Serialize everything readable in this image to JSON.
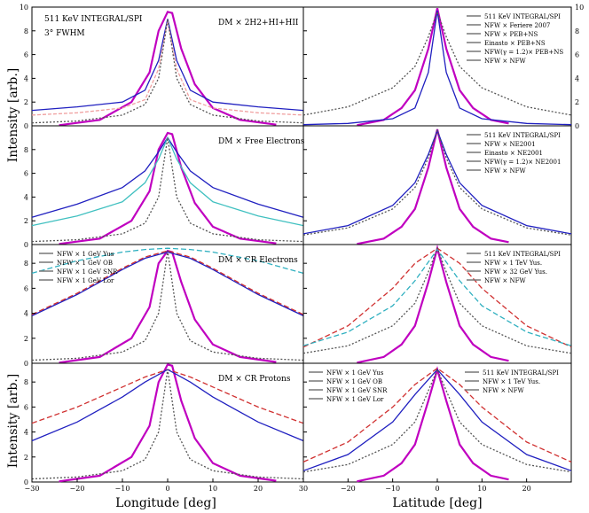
{
  "figure": {
    "xlabel_left": "Longitude [deg]",
    "xlabel_right": "Latitude [deg]",
    "ylabel": "Intensity [arb.]",
    "x_ticks_left": [
      "−30",
      "−20",
      "−10",
      "0",
      "10",
      "20",
      "30"
    ],
    "x_ticks_right": [
      "−20",
      "−10",
      "0",
      "10",
      "20"
    ],
    "y_ticks": [
      "0",
      "2",
      "4",
      "6",
      "8",
      "10"
    ],
    "y_ticks_small": [
      "0",
      "2",
      "4",
      "6",
      "8"
    ]
  },
  "chart_data": [
    {
      "type": "line",
      "panel": "row1-left",
      "title": "511 KeV INTEGRAL/SPI",
      "subtitle": "3° FWHM",
      "annotation": "DM × 2H2+HI+HII",
      "xlim": [
        -30,
        30
      ],
      "ylim": [
        0,
        10
      ],
      "series": [
        {
          "name": "511 KeV INTEGRAL/SPI",
          "color": "#c000c0",
          "x": [
            -24,
            -15,
            -8,
            -4,
            -2,
            0,
            1,
            3,
            6,
            10,
            16,
            24
          ],
          "y": [
            0.05,
            0.5,
            2.0,
            4.5,
            8.0,
            9.6,
            9.5,
            6.5,
            3.5,
            1.5,
            0.5,
            0.1
          ]
        },
        {
          "name": "NFW × PEB+NS",
          "color": "#2020c0",
          "x": [
            -30,
            -20,
            -10,
            -5,
            -2,
            0,
            2,
            5,
            10,
            20,
            30
          ],
          "y": [
            1.3,
            1.6,
            2.0,
            3.0,
            5.5,
            9.0,
            5.5,
            3.0,
            2.0,
            1.6,
            1.3
          ]
        },
        {
          "name": "NFW × Feriere 2007",
          "color": "#f0a0a0",
          "x": [
            -30,
            -20,
            -10,
            -5,
            -2,
            0,
            2,
            5,
            10,
            20,
            30
          ],
          "y": [
            0.9,
            1.1,
            1.5,
            2.2,
            4.8,
            8.8,
            4.8,
            2.2,
            1.5,
            1.1,
            0.9
          ]
        },
        {
          "name": "NFW × NFW",
          "color": "#555555",
          "x": [
            -30,
            -20,
            -10,
            -5,
            -2,
            0,
            2,
            5,
            10,
            20,
            30
          ],
          "y": [
            0.25,
            0.4,
            0.9,
            1.8,
            4.0,
            9.0,
            4.0,
            1.8,
            0.9,
            0.4,
            0.25
          ]
        }
      ]
    },
    {
      "type": "line",
      "panel": "row1-right",
      "xlim": [
        -30,
        30
      ],
      "ylim": [
        0,
        10
      ],
      "legend": [
        "511 KeV INTEGRAL/SPI",
        "NFW × Feriere 2007",
        "NFW × PEB+NS",
        "Einasto × PEB+NS",
        "NFW(γ = 1.2)× PEB+NS",
        "NFW × NFW"
      ],
      "series": [
        {
          "name": "511 KeV INTEGRAL/SPI",
          "color": "#c000c0",
          "x": [
            -18,
            -12,
            -8,
            -5,
            -2,
            0,
            2,
            5,
            8,
            12,
            16
          ],
          "y": [
            0.05,
            0.5,
            1.5,
            3.0,
            6.5,
            9.9,
            6.5,
            3.0,
            1.5,
            0.5,
            0.2
          ]
        },
        {
          "name": "NFW × PEB+NS",
          "color": "#2020c0",
          "x": [
            -30,
            -20,
            -10,
            -5,
            -2,
            0,
            2,
            5,
            10,
            20,
            30
          ],
          "y": [
            0.1,
            0.2,
            0.6,
            1.5,
            4.5,
            9.7,
            4.5,
            1.5,
            0.6,
            0.2,
            0.1
          ]
        },
        {
          "name": "NFW × NFW",
          "color": "#555555",
          "x": [
            -30,
            -20,
            -10,
            -5,
            -2,
            0,
            2,
            5,
            10,
            20,
            30
          ],
          "y": [
            0.9,
            1.6,
            3.2,
            5.0,
            7.5,
            9.6,
            7.5,
            5.0,
            3.2,
            1.6,
            0.9
          ]
        }
      ]
    },
    {
      "type": "line",
      "panel": "row2-left",
      "annotation": "DM × Free Electrons",
      "xlim": [
        -30,
        30
      ],
      "ylim": [
        0,
        10
      ],
      "series": [
        {
          "name": "511 KeV INTEGRAL/SPI",
          "color": "#c000c0",
          "x": [
            -24,
            -15,
            -8,
            -4,
            -2,
            0,
            1,
            3,
            6,
            10,
            16,
            24
          ],
          "y": [
            0.05,
            0.5,
            2.0,
            4.5,
            8.0,
            9.4,
            9.3,
            6.5,
            3.5,
            1.5,
            0.5,
            0.1
          ]
        },
        {
          "name": "NFW × NE2001",
          "color": "#2020c0",
          "x": [
            -30,
            -20,
            -10,
            -5,
            -2,
            0,
            2,
            5,
            10,
            20,
            30
          ],
          "y": [
            2.3,
            3.4,
            4.8,
            6.2,
            7.8,
            9.0,
            7.8,
            6.2,
            4.8,
            3.4,
            2.3
          ]
        },
        {
          "name": "NFW(γ = 1.2)× NE2001",
          "color": "#40c0c0",
          "x": [
            -30,
            -20,
            -10,
            -5,
            -2,
            0,
            2,
            5,
            10,
            20,
            30
          ],
          "y": [
            1.6,
            2.4,
            3.6,
            5.2,
            7.2,
            9.0,
            7.2,
            5.2,
            3.6,
            2.4,
            1.6
          ]
        },
        {
          "name": "NFW × NFW",
          "color": "#555555",
          "x": [
            -30,
            -20,
            -10,
            -5,
            -2,
            0,
            2,
            5,
            10,
            20,
            30
          ],
          "y": [
            0.25,
            0.4,
            0.9,
            1.8,
            4.0,
            9.0,
            4.0,
            1.8,
            0.9,
            0.4,
            0.25
          ]
        }
      ]
    },
    {
      "type": "line",
      "panel": "row2-right",
      "xlim": [
        -30,
        30
      ],
      "ylim": [
        0,
        10
      ],
      "legend": [
        "511 KeV INTEGRAL/SPI",
        "NFW × NE2001",
        "Einasto × NE2001",
        "NFW(γ = 1.2)× NE2001",
        "NFW × NFW"
      ],
      "series": [
        {
          "name": "511 KeV INTEGRAL/SPI",
          "color": "#c000c0",
          "x": [
            -18,
            -12,
            -8,
            -5,
            -2,
            0,
            2,
            5,
            8,
            12,
            16
          ],
          "y": [
            0.05,
            0.5,
            1.5,
            3.0,
            6.5,
            9.7,
            6.5,
            3.0,
            1.5,
            0.5,
            0.2
          ]
        },
        {
          "name": "NFW × NE2001",
          "color": "#2020c0",
          "x": [
            -30,
            -20,
            -10,
            -5,
            -2,
            0,
            2,
            5,
            10,
            20,
            30
          ],
          "y": [
            0.9,
            1.6,
            3.3,
            5.2,
            7.6,
            9.6,
            7.6,
            5.2,
            3.3,
            1.6,
            0.9
          ]
        },
        {
          "name": "NFW × NFW",
          "color": "#555555",
          "x": [
            -30,
            -20,
            -10,
            -5,
            -2,
            0,
            2,
            5,
            10,
            20,
            30
          ],
          "y": [
            0.8,
            1.4,
            3.0,
            4.8,
            7.3,
            9.6,
            7.3,
            4.8,
            3.0,
            1.4,
            0.8
          ]
        }
      ]
    },
    {
      "type": "line",
      "panel": "row3-left",
      "annotation": "DM × CR Electrons",
      "xlim": [
        -30,
        30
      ],
      "ylim": [
        0,
        9.5
      ],
      "legend": [
        "NFW × 1 GeV Yus",
        "NFW × 1 GeV OB",
        "NFW × 1 GeV SNR",
        "NFW × 1 GeV Lor"
      ],
      "series": [
        {
          "name": "511 KeV INTEGRAL/SPI",
          "color": "#c000c0",
          "x": [
            -24,
            -15,
            -8,
            -4,
            -2,
            0,
            1,
            3,
            6,
            10,
            16,
            24
          ],
          "y": [
            0.05,
            0.5,
            2.0,
            4.5,
            8.0,
            9.0,
            8.9,
            6.5,
            3.5,
            1.5,
            0.5,
            0.1
          ]
        },
        {
          "name": "NFW × 1 GeV Yus",
          "color": "#2020c0",
          "x": [
            -30,
            -20,
            -10,
            -5,
            0,
            5,
            10,
            20,
            30
          ],
          "y": [
            3.8,
            5.5,
            7.5,
            8.4,
            8.9,
            8.4,
            7.5,
            5.5,
            3.8
          ]
        },
        {
          "name": "NFW × 1 GeV OB",
          "color": "#d03030",
          "x": [
            -30,
            -20,
            -10,
            -5,
            0,
            5,
            10,
            20,
            30
          ],
          "y": [
            3.9,
            5.6,
            7.6,
            8.5,
            9.0,
            8.5,
            7.6,
            5.6,
            3.9
          ]
        },
        {
          "name": "cyan dashed",
          "color": "#30b0c0",
          "x": [
            -30,
            -20,
            -10,
            -5,
            0,
            5,
            10,
            20,
            30
          ],
          "y": [
            7.2,
            8.2,
            8.9,
            9.1,
            9.2,
            9.1,
            8.9,
            8.2,
            7.2
          ]
        },
        {
          "name": "NFW × NFW",
          "color": "#555555",
          "x": [
            -30,
            -20,
            -10,
            -5,
            -2,
            0,
            2,
            5,
            10,
            20,
            30
          ],
          "y": [
            0.25,
            0.4,
            0.9,
            1.8,
            4.0,
            9.0,
            4.0,
            1.8,
            0.9,
            0.4,
            0.25
          ]
        }
      ]
    },
    {
      "type": "line",
      "panel": "row3-right",
      "xlim": [
        -30,
        30
      ],
      "ylim": [
        0,
        9.5
      ],
      "legend": [
        "511 KeV INTEGRAL/SPI",
        "NFW × 1 TeV Yus.",
        "NFW × 32 GeV Yus.",
        "NFW × NFW"
      ],
      "series": [
        {
          "name": "511 KeV INTEGRAL/SPI",
          "color": "#c000c0",
          "x": [
            -18,
            -12,
            -8,
            -5,
            -2,
            0,
            2,
            5,
            8,
            12,
            16
          ],
          "y": [
            0.05,
            0.5,
            1.5,
            3.0,
            6.5,
            9.2,
            6.5,
            3.0,
            1.5,
            0.5,
            0.2
          ]
        },
        {
          "name": "NFW × 1 GeV Yus",
          "color": "#d03030",
          "x": [
            -30,
            -20,
            -10,
            -5,
            0,
            5,
            10,
            20,
            30
          ],
          "y": [
            1.3,
            3.0,
            6.0,
            8.0,
            9.2,
            8.0,
            6.0,
            3.0,
            1.3
          ]
        },
        {
          "name": "cyan dashed",
          "color": "#30b0c0",
          "x": [
            -30,
            -20,
            -10,
            -5,
            0,
            5,
            10,
            20,
            30
          ],
          "y": [
            1.4,
            2.5,
            4.6,
            6.6,
            9.1,
            6.6,
            4.6,
            2.5,
            1.4
          ]
        },
        {
          "name": "NFW × NFW",
          "color": "#555555",
          "x": [
            -30,
            -20,
            -10,
            -5,
            -2,
            0,
            2,
            5,
            10,
            20,
            30
          ],
          "y": [
            0.8,
            1.4,
            3.0,
            4.8,
            7.3,
            9.2,
            7.3,
            4.8,
            3.0,
            1.4,
            0.8
          ]
        }
      ]
    },
    {
      "type": "line",
      "panel": "row4-left",
      "annotation": "DM × CR Protons",
      "xlim": [
        -30,
        30
      ],
      "ylim": [
        0,
        9.5
      ],
      "series": [
        {
          "name": "511 KeV INTEGRAL/SPI",
          "color": "#c000c0",
          "x": [
            -24,
            -15,
            -8,
            -4,
            -2,
            0,
            1,
            3,
            6,
            10,
            16,
            24
          ],
          "y": [
            0.05,
            0.5,
            2.0,
            4.5,
            8.0,
            9.4,
            9.3,
            6.5,
            3.5,
            1.5,
            0.5,
            0.1
          ]
        },
        {
          "name": "NFW × 1 GeV Lor",
          "color": "#d03030",
          "x": [
            -30,
            -20,
            -10,
            -5,
            0,
            5,
            10,
            20,
            30
          ],
          "y": [
            4.7,
            6.0,
            7.6,
            8.4,
            9.0,
            8.4,
            7.6,
            6.0,
            4.7
          ]
        },
        {
          "name": "NFW × 1 GeV Yus",
          "color": "#2020c0",
          "x": [
            -30,
            -20,
            -10,
            -5,
            0,
            5,
            10,
            20,
            30
          ],
          "y": [
            3.3,
            4.8,
            6.8,
            8.0,
            9.0,
            8.0,
            6.8,
            4.8,
            3.3
          ]
        },
        {
          "name": "NFW × NFW",
          "color": "#555555",
          "x": [
            -30,
            -20,
            -10,
            -5,
            -2,
            0,
            2,
            5,
            10,
            20,
            30
          ],
          "y": [
            0.25,
            0.4,
            0.9,
            1.8,
            4.0,
            9.0,
            4.0,
            1.8,
            0.9,
            0.4,
            0.25
          ]
        }
      ]
    },
    {
      "type": "line",
      "panel": "row4-right",
      "xlim": [
        -30,
        30
      ],
      "ylim": [
        0,
        9.5
      ],
      "legend_left": [
        "NFW × 1 GeV Yus",
        "NFW × 1 GeV OB",
        "NFW × 1 GeV SNR",
        "NFW × 1 GeV Lor"
      ],
      "legend_right": [
        "511 KeV INTEGRAL/SPI",
        "NFW × 1 TeV Yus.",
        "NFW × NFW"
      ],
      "series": [
        {
          "name": "511 KeV INTEGRAL/SPI",
          "color": "#c000c0",
          "x": [
            -18,
            -12,
            -8,
            -5,
            -2,
            0,
            2,
            5,
            8,
            12,
            16
          ],
          "y": [
            0.05,
            0.5,
            1.5,
            3.0,
            6.5,
            9.0,
            6.5,
            3.0,
            1.5,
            0.5,
            0.2
          ]
        },
        {
          "name": "NFW × 1 GeV OB",
          "color": "#d03030",
          "x": [
            -30,
            -20,
            -10,
            -5,
            0,
            5,
            10,
            20,
            30
          ],
          "y": [
            1.6,
            3.2,
            6.0,
            7.8,
            9.1,
            7.8,
            6.0,
            3.2,
            1.6
          ]
        },
        {
          "name": "NFW × 1 TeV Yus.",
          "color": "#2020c0",
          "x": [
            -30,
            -20,
            -10,
            -5,
            0,
            5,
            10,
            20,
            30
          ],
          "y": [
            0.9,
            2.2,
            4.8,
            7.0,
            9.0,
            7.0,
            4.8,
            2.2,
            0.9
          ]
        },
        {
          "name": "NFW × NFW",
          "color": "#555555",
          "x": [
            -30,
            -20,
            -10,
            -5,
            -2,
            0,
            2,
            5,
            10,
            20,
            30
          ],
          "y": [
            0.8,
            1.4,
            3.0,
            4.8,
            7.3,
            9.0,
            7.3,
            4.8,
            3.0,
            1.4,
            0.8
          ]
        }
      ]
    }
  ]
}
